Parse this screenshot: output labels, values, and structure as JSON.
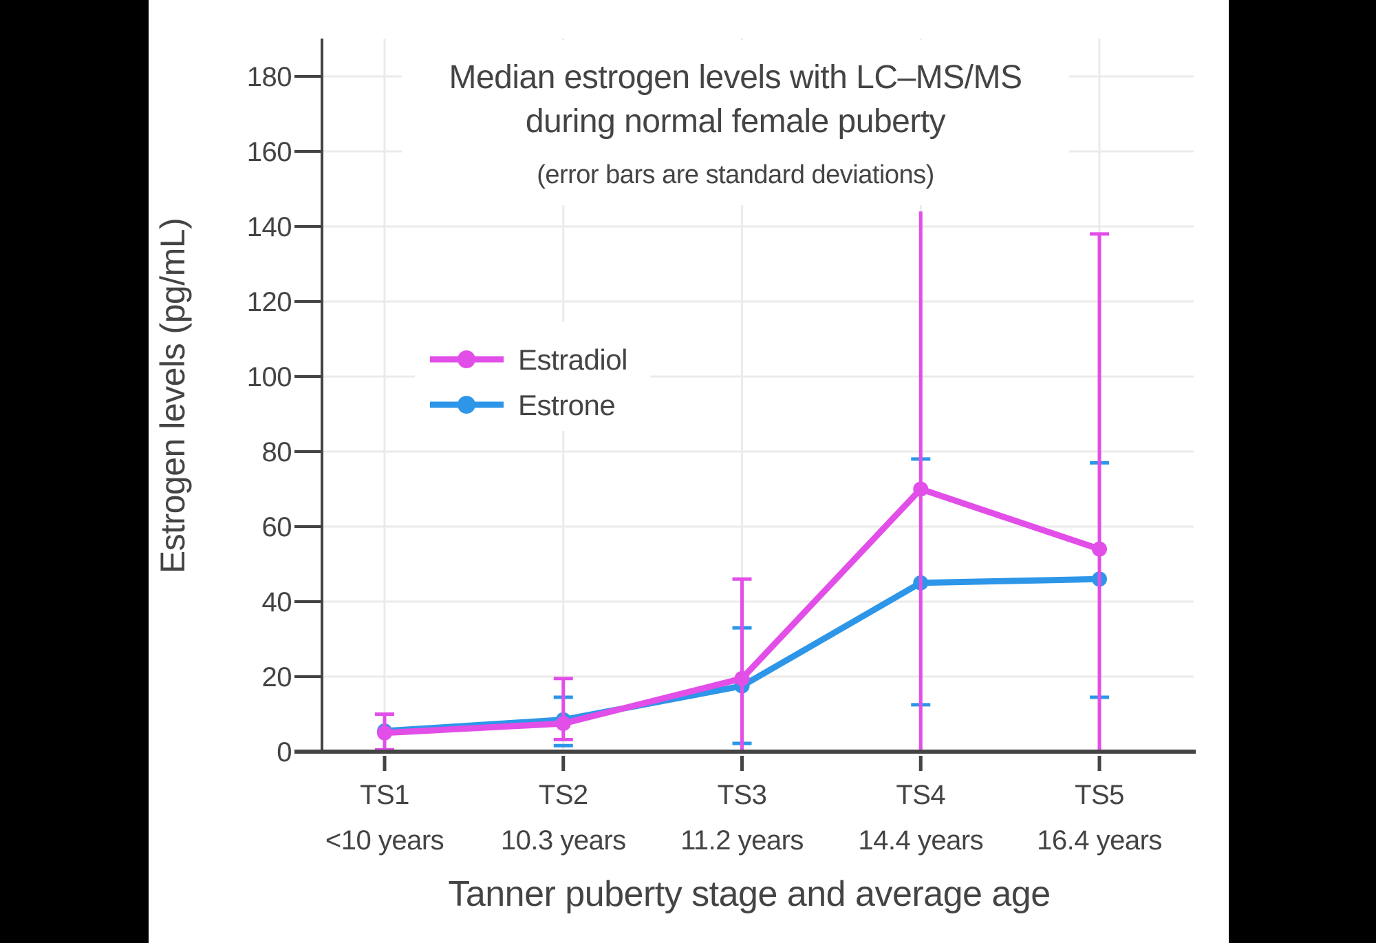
{
  "frame": {
    "letterbox_color": "#000000",
    "panel_color": "#ffffff",
    "text_color": "#444444",
    "grid_color": "#ebebeb",
    "axis_color": "#444444"
  },
  "title": {
    "line1": "Median estrogen levels with LC–MS/MS",
    "line2": "during normal female puberty",
    "subtitle": "(error bars are standard deviations)"
  },
  "legend": {
    "items": [
      {
        "label": "Estradiol",
        "color": "#E24EE8"
      },
      {
        "label": "Estrone",
        "color": "#2D96E8"
      }
    ]
  },
  "chart_data": {
    "type": "line",
    "title": "Median estrogen levels with LC–MS/MS during normal female puberty",
    "subtitle": "(error bars are standard deviations)",
    "xlabel": "Tanner puberty stage and average age",
    "ylabel": "Estrogen levels (pg/mL)",
    "categories": [
      "TS1",
      "TS2",
      "TS3",
      "TS4",
      "TS5"
    ],
    "category_ages": [
      "<10 years",
      "10.3 years",
      "11.2 years",
      "14.4 years",
      "16.4 years"
    ],
    "ylim": [
      0,
      190
    ],
    "ytick_step": 20,
    "ytick_max": 180,
    "grid": true,
    "legend_position": "inside upper-left",
    "error_bar_note": "error bars are standard deviations",
    "series": [
      {
        "name": "Estrone",
        "color": "#2D96E8",
        "values": [
          5.5,
          8.5,
          17.5,
          45,
          46
        ],
        "error_upper": [
          null,
          14.5,
          33,
          78,
          77
        ],
        "error_lower": [
          null,
          1.6,
          2.2,
          12.5,
          14.5
        ],
        "error_style": "caps-only",
        "upper_caps": [
          false,
          true,
          true,
          true,
          true
        ],
        "lower_caps": [
          false,
          true,
          true,
          true,
          true
        ]
      },
      {
        "name": "Estradiol",
        "color": "#E24EE8",
        "values": [
          5,
          7.5,
          19.5,
          70,
          54
        ],
        "error_upper": [
          10,
          19.5,
          46,
          144,
          138
        ],
        "error_lower": [
          0.5,
          3.2,
          0,
          0,
          0
        ],
        "error_style": "line-with-caps",
        "upper_caps": [
          true,
          true,
          true,
          false,
          true
        ],
        "lower_caps": [
          true,
          true,
          false,
          false,
          false
        ]
      }
    ]
  }
}
